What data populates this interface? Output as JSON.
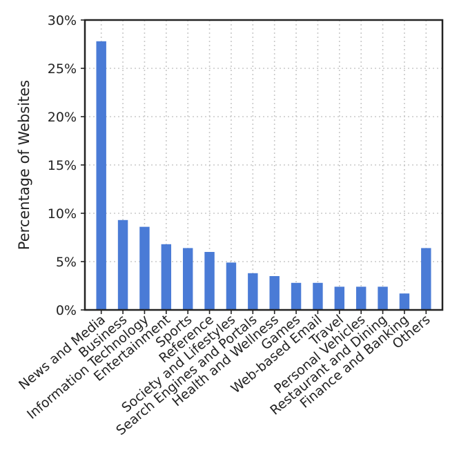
{
  "chart_data": {
    "type": "bar",
    "title": "",
    "xlabel": "",
    "ylabel": "Percentage of Websites",
    "ylim": [
      0,
      30
    ],
    "y_ticks": [
      0,
      5,
      10,
      15,
      20,
      25,
      30
    ],
    "y_tick_labels": [
      "0%",
      "5%",
      "10%",
      "15%",
      "20%",
      "25%",
      "30%"
    ],
    "grid": true,
    "categories": [
      "News and Media",
      "Business",
      "Information Technology",
      "Entertainment",
      "Sports",
      "Reference",
      "Society and Lifestyles",
      "Search Engines and Portals",
      "Health and Wellness",
      "Games",
      "Web-based Email",
      "Travel",
      "Personal Vehicles",
      "Restaurant and Dining",
      "Finance and Banking",
      "Others"
    ],
    "values": [
      27.8,
      9.3,
      8.6,
      6.8,
      6.4,
      6.0,
      4.9,
      3.8,
      3.5,
      2.8,
      2.8,
      2.4,
      2.4,
      2.4,
      1.7,
      6.4
    ],
    "bar_color": "#4a7bd6"
  }
}
